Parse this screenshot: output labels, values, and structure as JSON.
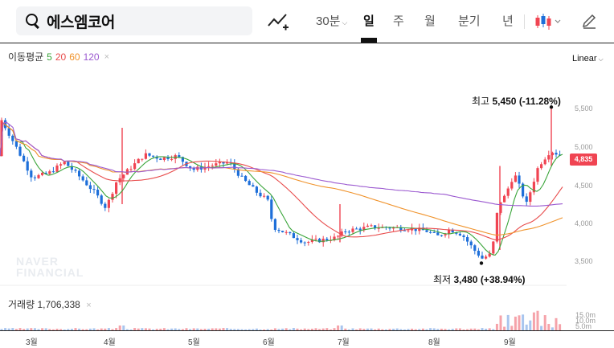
{
  "search": {
    "query": "에스엠코어"
  },
  "tabs": [
    {
      "label": "30분",
      "has_caret": true,
      "active": false
    },
    {
      "label": "일",
      "active": true
    },
    {
      "label": "주",
      "active": false
    },
    {
      "label": "월",
      "active": false
    },
    {
      "label": "분기",
      "active": false
    },
    {
      "label": "년",
      "active": false
    }
  ],
  "icons": {
    "search": "search-icon",
    "chart_type": "chart-type-icon",
    "candle": "candlestick-icon",
    "pen": "pen-icon"
  },
  "ma_legend": {
    "title": "이동평균",
    "periods": [
      {
        "label": "5",
        "color": "#3aa53a"
      },
      {
        "label": "20",
        "color": "#e84c4c"
      },
      {
        "label": "60",
        "color": "#f0922a"
      },
      {
        "label": "120",
        "color": "#9b59d0"
      }
    ],
    "close": "×"
  },
  "scale": {
    "label": "Linear"
  },
  "watermark": {
    "line1": "NAVER",
    "line2": "FINANCIAL"
  },
  "high": {
    "prefix": "최고",
    "value": "5,450",
    "change": "(-11.28%)"
  },
  "low": {
    "prefix": "최저",
    "value": "3,480",
    "change": "(+38.94%)"
  },
  "current_price": "4,835",
  "colors": {
    "up": "#f04452",
    "down": "#1e6fd9",
    "accent": "#f04452"
  },
  "chart_data": {
    "type": "candlestick",
    "y_ticks": [
      "5,500",
      "5,000",
      "4,500",
      "4,000",
      "3,500"
    ],
    "y_tick_values": [
      5500,
      5000,
      4500,
      4000,
      3500
    ],
    "x_ticks": [
      "3월",
      "4월",
      "5월",
      "6월",
      "7월",
      "8월",
      "9월"
    ],
    "volume": {
      "title": "거래량",
      "value": "1,706,338",
      "ticks": [
        "15.0m",
        "10.0m",
        "5.0m"
      ]
    },
    "high": 5450,
    "low": 3480,
    "last": 4835
  }
}
